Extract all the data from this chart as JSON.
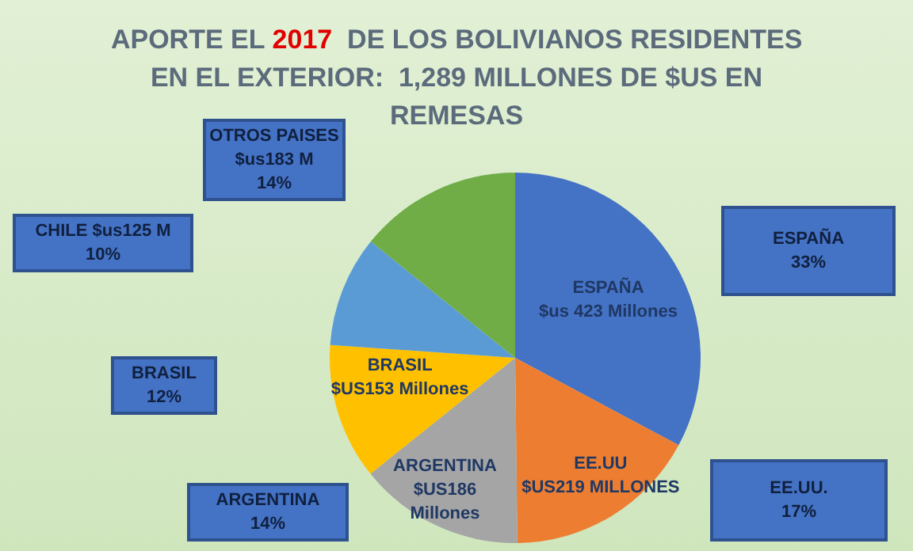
{
  "chart_data": {
    "type": "pie",
    "title": "APORTE EL 2017  DE LOS BOLIVIANOS RESIDENTES\nEN EL EXTERIOR:  1,289 MILLONES DE $US EN\nREMESAS",
    "categories": [
      "ESPAÑA",
      "EE.UU",
      "ARGENTINA",
      "BRASIL",
      null,
      null
    ],
    "values": [
      423,
      219,
      186,
      153,
      125,
      183
    ],
    "colors": [
      "#4472c4",
      "#ed7d31",
      "#a5a5a5",
      "#ffc000",
      "#5b9bd5",
      "#70ad47"
    ],
    "value_labels": [
      "$us 423 Millones",
      "$US219 MILLONES",
      "$US186\nMillones",
      "$US153 Millones",
      null,
      null
    ],
    "annotations": [
      "ESPAÑA\n33%",
      "EE.UU.\n17%",
      "ARGENTINA\n14%",
      "BRASIL\n12%",
      "CHILE $us125 M\n10%",
      "OTROS PAISES\n$us183 M\n14%"
    ],
    "legend": false
  }
}
